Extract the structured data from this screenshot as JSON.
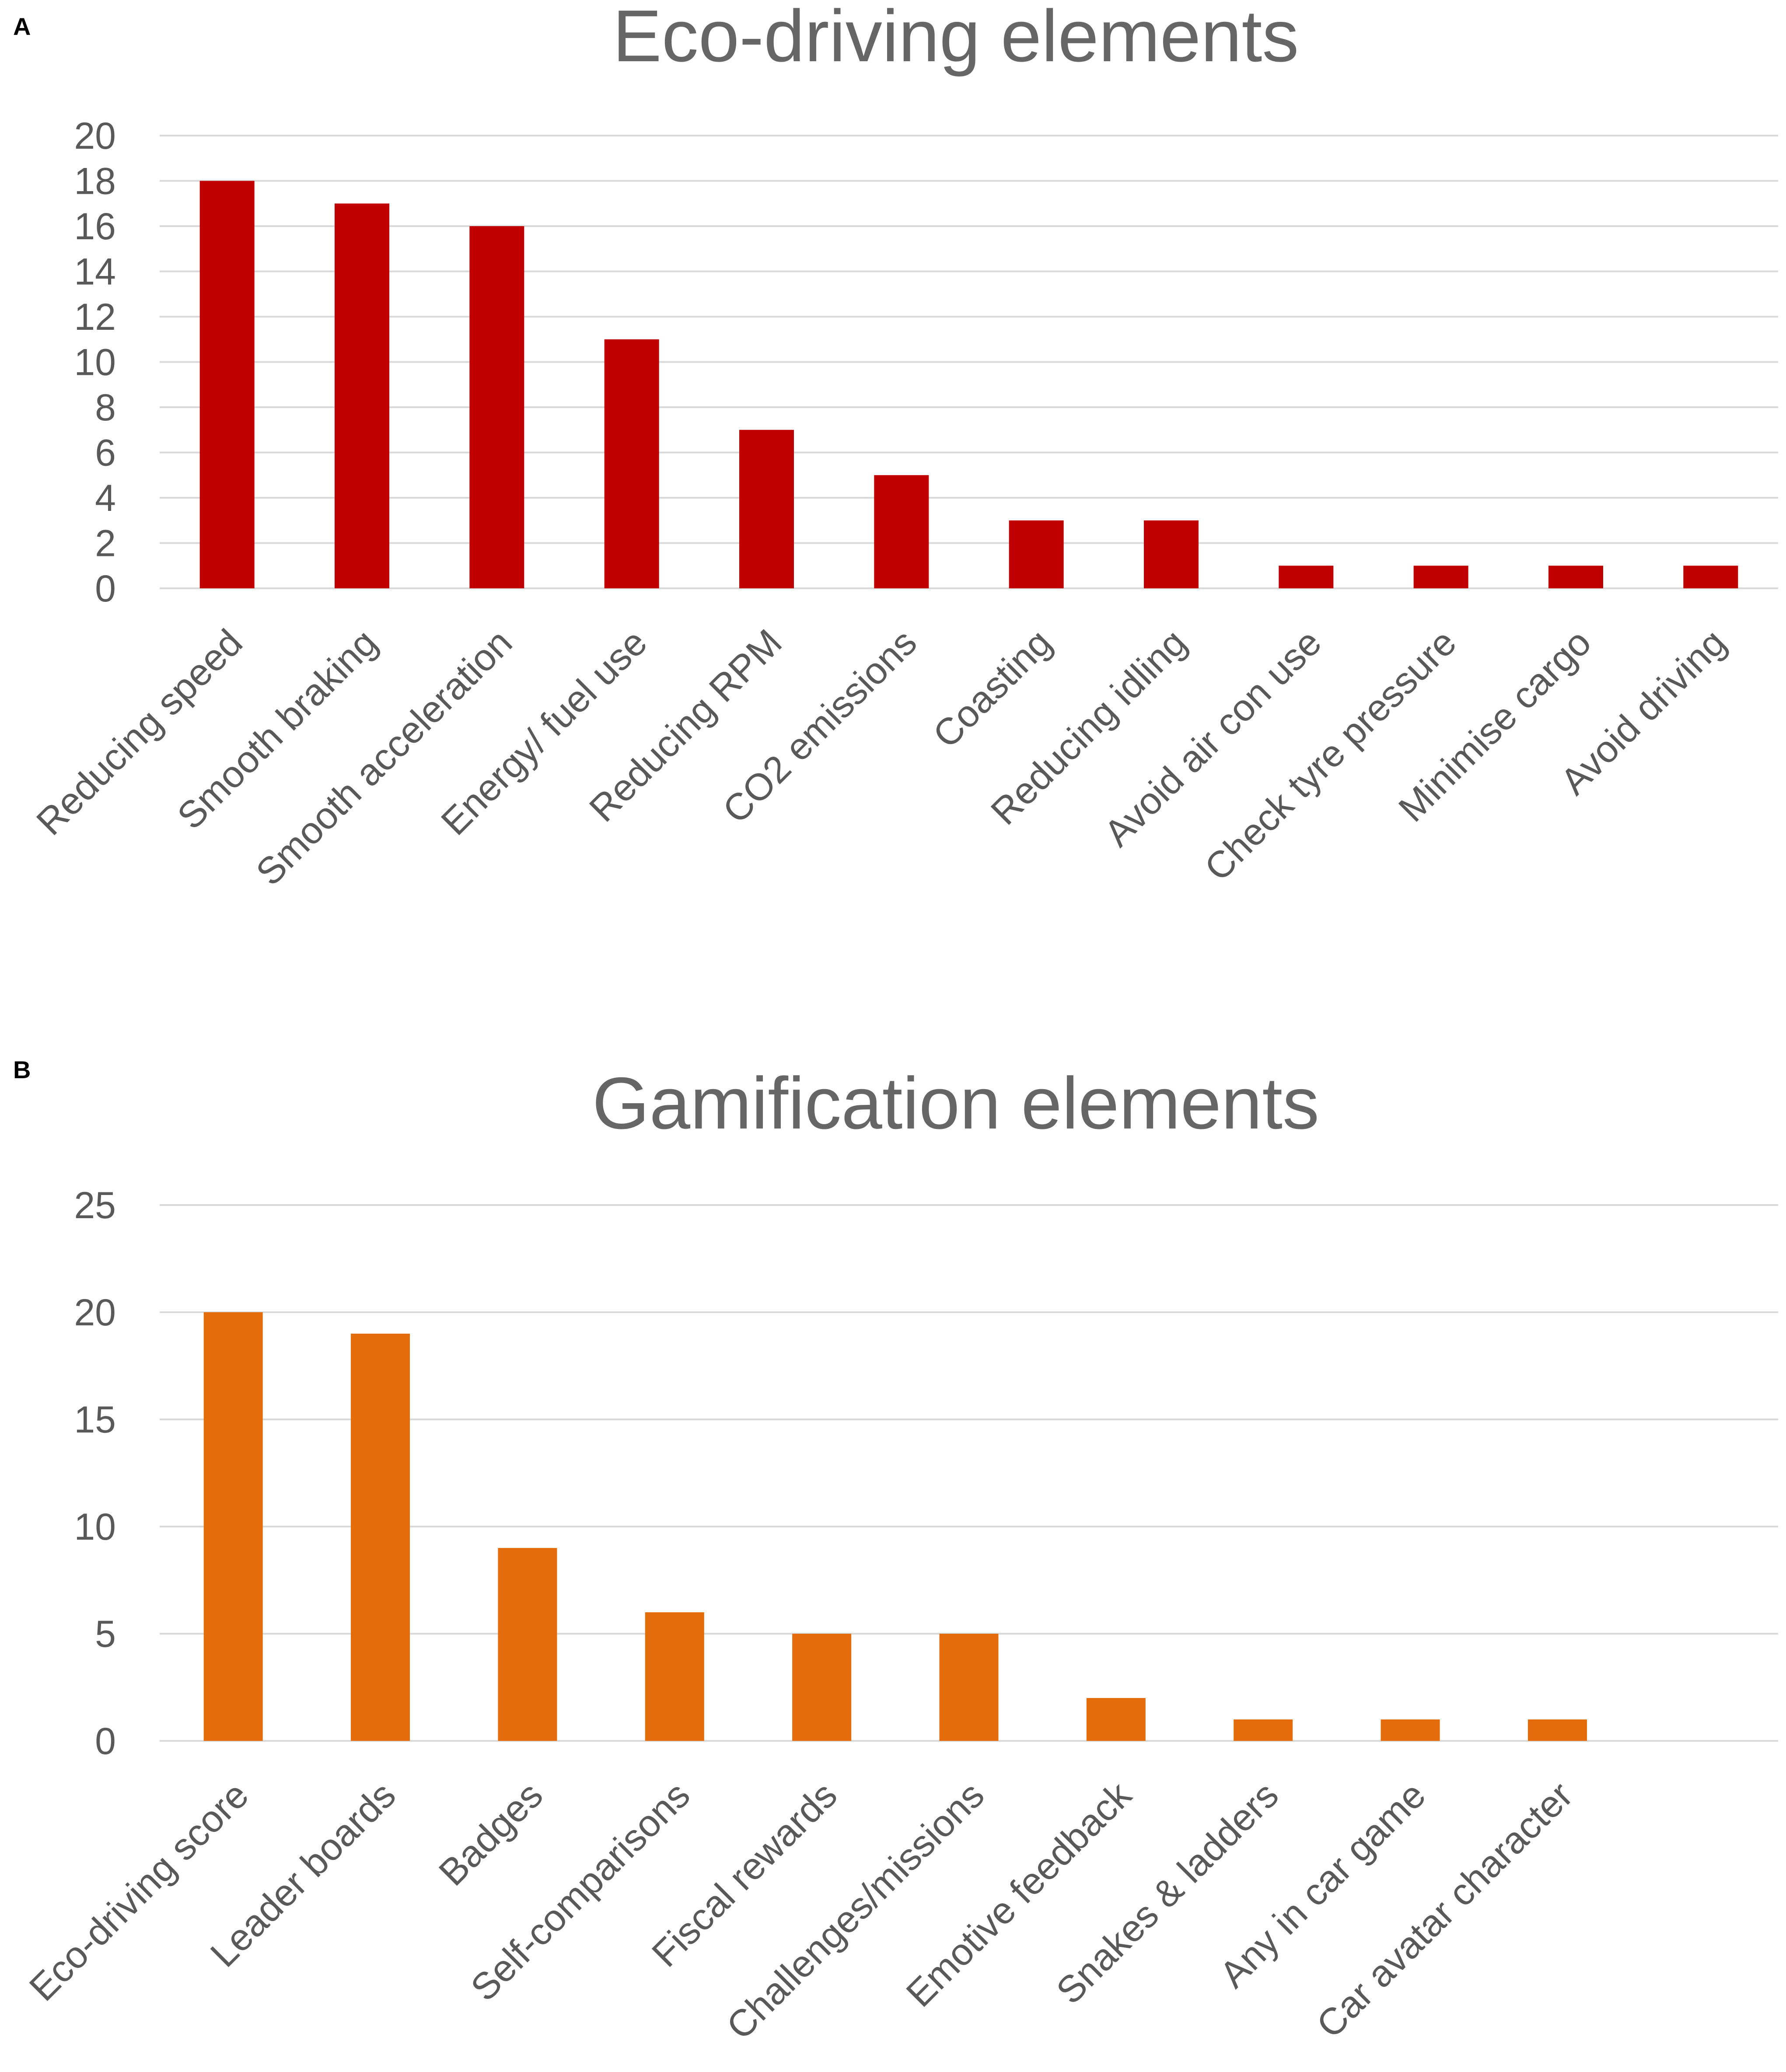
{
  "panels": [
    {
      "letter": "A",
      "color": "#c00000",
      "chart_data": {
        "type": "bar",
        "title": "Eco-driving elements",
        "xlabel": "",
        "ylabel": "",
        "ylim": [
          0,
          20
        ],
        "yticks": [
          0,
          2,
          4,
          6,
          8,
          10,
          12,
          14,
          16,
          18,
          20
        ],
        "grid": true,
        "categories": [
          "Reducing speed",
          "Smooth braking",
          "Smooth acceleration",
          "Energy/ fuel use",
          "Reducing RPM",
          "CO2 emissions",
          "Coasting",
          "Reducing idling",
          "Avoid air con use",
          "Check tyre pressure",
          "Minimise cargo",
          "Avoid driving"
        ],
        "values": [
          18,
          17,
          16,
          11,
          7,
          5,
          3,
          3,
          1,
          1,
          1,
          1
        ]
      }
    },
    {
      "letter": "B",
      "color": "#e46c0a",
      "chart_data": {
        "type": "bar",
        "title": "Gamification elements",
        "xlabel": "",
        "ylabel": "",
        "ylim": [
          0,
          25
        ],
        "yticks": [
          0,
          5,
          10,
          15,
          20,
          25
        ],
        "grid": true,
        "categories": [
          "Eco-driving score",
          "Leader boards",
          "Badges",
          "Self-comparisons",
          "Fiscal rewards",
          "Challenges/missions",
          "Emotive feedback",
          "Snakes & ladders",
          "Any in car game",
          "Car avatar character",
          ""
        ],
        "values": [
          20,
          19,
          9,
          6,
          5,
          5,
          2,
          1,
          1,
          1,
          null
        ]
      }
    }
  ]
}
